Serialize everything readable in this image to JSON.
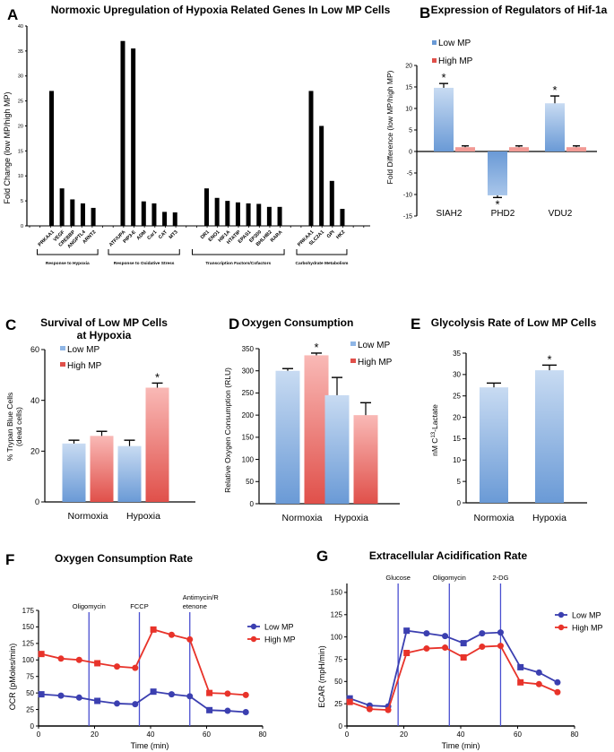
{
  "colors": {
    "low_mp": "#6a9ad6",
    "low_mp_light": "#c4d8f1",
    "high_mp": "#e0504a",
    "high_mp_light": "#f7b3b0",
    "line_low": "#3b3fb0",
    "line_high": "#e8332a",
    "vline": "#4a4fd0",
    "bar_black": "#000000"
  },
  "chart_data": [
    {
      "panel": "A",
      "type": "bar",
      "title": "Normoxic Upregulation of Hypoxia Related Genes In Low MP Cells",
      "xlabel": "",
      "ylabel": "Fold Change (low MP/high MP)",
      "ylim": [
        0,
        40
      ],
      "yticks": [
        0,
        5,
        10,
        15,
        20,
        25,
        30,
        35,
        40
      ],
      "groups": [
        {
          "name": "Response to Hypoxia",
          "categories": [
            "PRKAA1",
            "VEGF",
            "CREBBP",
            "ANGPTL4",
            "ARNT2"
          ],
          "values": [
            27,
            7.5,
            5.3,
            4.5,
            3.6
          ]
        },
        {
          "name": "Response to Oxidative Stress",
          "categories": [
            "ATF/UPA",
            "PIP3-E",
            "ADM",
            "Car1",
            "CAT",
            "MT3"
          ],
          "values": [
            37,
            35.5,
            4.9,
            4.5,
            2.8,
            2.7
          ]
        },
        {
          "name": "Transcription Factors/Cofactors",
          "categories": [
            "DR1",
            "ENO1",
            "HIF1A",
            "HTATIP",
            "EPAS1",
            "EP300",
            "BHLHB2",
            "RARA"
          ],
          "values": [
            7.5,
            5.6,
            5.0,
            4.7,
            4.5,
            4.4,
            3.8,
            3.8
          ]
        },
        {
          "name": "Carbohydrate Metabolism",
          "categories": [
            "PRKAA1",
            "SLC2A1",
            "GPI",
            "HK2"
          ],
          "values": [
            27,
            20,
            9,
            3.4
          ]
        }
      ]
    },
    {
      "panel": "B",
      "type": "bar",
      "title": "Expression of Regulators of Hif-1a",
      "xlabel": "",
      "ylabel": "Fold Difference (low MP/high MP)",
      "ylim": [
        -15,
        20
      ],
      "yticks": [
        -15,
        -10,
        -5,
        0,
        5,
        10,
        15,
        20
      ],
      "categories": [
        "SIAH2",
        "PHD2",
        "VDU2"
      ],
      "series": [
        {
          "name": "Low MP",
          "values": [
            14.8,
            -10.2,
            11.2
          ],
          "errors": [
            1.0,
            0.5,
            1.7
          ]
        },
        {
          "name": "High MP",
          "values": [
            1.0,
            1.0,
            1.0
          ],
          "errors": [
            0.3,
            0.3,
            0.3
          ]
        }
      ],
      "significance": [
        "*",
        "*",
        "*"
      ],
      "legend": "top-left"
    },
    {
      "panel": "C",
      "type": "bar",
      "title": "Survival of Low MP Cells at Hypoxia",
      "xlabel": "",
      "ylabel": "% Trypan Blue Cells (dead cells)",
      "ylim": [
        0,
        60
      ],
      "yticks": [
        0,
        20,
        40,
        60
      ],
      "categories": [
        "Normoxia",
        "Hypoxia"
      ],
      "series": [
        {
          "name": "Low MP",
          "values": [
            23,
            22
          ],
          "errors": [
            1.3,
            2.3
          ]
        },
        {
          "name": "High MP",
          "values": [
            26,
            45
          ],
          "errors": [
            1.8,
            1.8
          ]
        }
      ],
      "significance_note": "* on High MP Hypoxia",
      "legend": "top-left"
    },
    {
      "panel": "D",
      "type": "bar",
      "title": "Oxygen Consumption",
      "xlabel": "",
      "ylabel": "Relative Oxygen Consumption (RLU)",
      "ylim": [
        0,
        350
      ],
      "yticks": [
        0,
        50,
        100,
        150,
        200,
        250,
        300,
        350
      ],
      "categories": [
        "Normoxia",
        "Hypoxia"
      ],
      "series": [
        {
          "name": "Low MP",
          "values": [
            300,
            245
          ],
          "errors": [
            5,
            40
          ]
        },
        {
          "name": "High MP",
          "values": [
            335,
            200
          ],
          "errors": [
            5,
            28
          ]
        }
      ],
      "significance_note": "* on High MP Normoxia",
      "legend": "top-right"
    },
    {
      "panel": "E",
      "type": "bar",
      "title": "Glycolysis Rate of Low MP Cells",
      "xlabel": "",
      "ylabel": "nM C13-Lactate",
      "ylim": [
        0,
        35
      ],
      "yticks": [
        0,
        5,
        10,
        15,
        20,
        25,
        30,
        35
      ],
      "categories": [
        "Normoxia",
        "Hypoxia"
      ],
      "values": [
        27,
        31
      ],
      "errors": [
        1.0,
        1.2
      ],
      "significance": [
        "",
        "*"
      ]
    },
    {
      "panel": "F",
      "type": "line",
      "title": "Oxygen Consumption Rate",
      "xlabel": "Time (min)",
      "ylabel": "OCR (pMoles/min)",
      "xlim": [
        0,
        80
      ],
      "ylim": [
        0,
        175
      ],
      "xticks": [
        0,
        20,
        40,
        60,
        80
      ],
      "yticks": [
        0,
        25,
        50,
        75,
        100,
        125,
        150,
        175
      ],
      "annotations": [
        {
          "x": 18,
          "label": "Oligomycin"
        },
        {
          "x": 36,
          "label": "FCCP"
        },
        {
          "x": 54,
          "label": "Antimycin/R etenone"
        }
      ],
      "x": [
        1,
        8,
        14.5,
        21,
        28,
        34.5,
        41,
        47.5,
        54,
        61,
        67.5,
        74
      ],
      "series": [
        {
          "name": "Low MP",
          "values": [
            48,
            46,
            43,
            38,
            34,
            33,
            52,
            48,
            45,
            24,
            23,
            21
          ]
        },
        {
          "name": "High MP",
          "values": [
            109,
            102,
            100,
            95,
            90,
            88,
            146,
            138,
            131,
            50,
            49,
            47
          ]
        }
      ],
      "legend": "right"
    },
    {
      "panel": "G",
      "type": "line",
      "title": "Extracellular Acidification Rate",
      "xlabel": "Time (min)",
      "ylabel": "ECAR (mpH/min)",
      "xlim": [
        0,
        80
      ],
      "ylim": [
        0,
        160
      ],
      "xticks": [
        0,
        20,
        40,
        60,
        80
      ],
      "yticks": [
        0,
        25,
        50,
        75,
        100,
        125,
        150
      ],
      "annotations": [
        {
          "x": 18,
          "label": "Glucose"
        },
        {
          "x": 36,
          "label": "Oligomycin"
        },
        {
          "x": 54,
          "label": "2-DG"
        }
      ],
      "x": [
        1,
        8,
        14.5,
        21,
        28,
        34.5,
        41,
        47.5,
        54,
        61,
        67.5,
        74
      ],
      "series": [
        {
          "name": "Low MP",
          "values": [
            31,
            23,
            22,
            107,
            104,
            101,
            93,
            104,
            105,
            66,
            60,
            49
          ]
        },
        {
          "name": "High MP",
          "values": [
            27,
            19,
            18,
            82,
            87,
            88,
            77,
            89,
            90,
            49,
            47,
            38
          ]
        }
      ],
      "legend": "right"
    }
  ]
}
